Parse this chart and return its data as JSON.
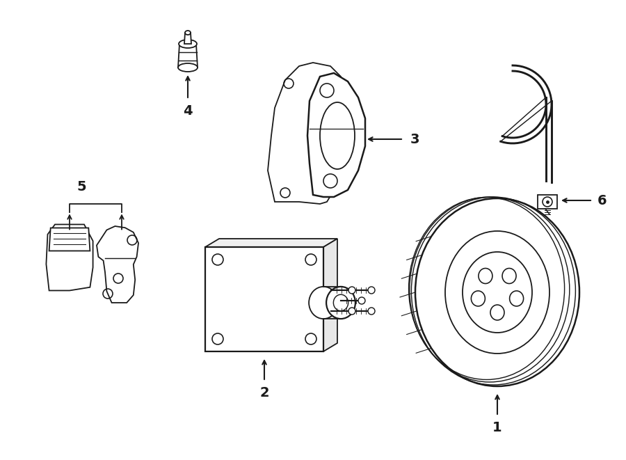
{
  "bg_color": "#ffffff",
  "line_color": "#1a1a1a",
  "lw": 1.3,
  "fig_width": 9.0,
  "fig_height": 6.61,
  "font_size": 14,
  "font_weight": "bold"
}
